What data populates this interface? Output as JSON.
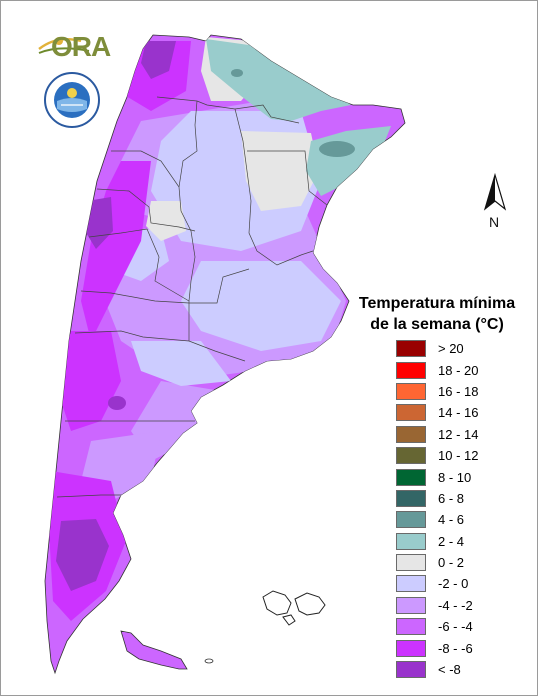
{
  "logo": {
    "text": "ORA",
    "seal_text": "SERVICIO METEOROLÓGICO NACIONAL ARGENTINA"
  },
  "north_label": "N",
  "legend": {
    "title_line1": "Temperatura mínima",
    "title_line2": "de la semana (°C)",
    "items": [
      {
        "label": "> 20",
        "color": "#990000"
      },
      {
        "label": "18 - 20",
        "color": "#ff0000"
      },
      {
        "label": "16 - 18",
        "color": "#ff6633"
      },
      {
        "label": "14 - 16",
        "color": "#cc6633"
      },
      {
        "label": "12 - 14",
        "color": "#996633"
      },
      {
        "label": "10 - 12",
        "color": "#666633"
      },
      {
        "label": "8 - 10",
        "color": "#006633"
      },
      {
        "label": "6 - 8",
        "color": "#336666"
      },
      {
        "label": "4 - 6",
        "color": "#669999"
      },
      {
        "label": "2 - 4",
        "color": "#99cccc"
      },
      {
        "label": "0 - 2",
        "color": "#e6e6e6"
      },
      {
        "label": "-2 - 0",
        "color": "#ccccff"
      },
      {
        "label": "-4 - -2",
        "color": "#cc99ff"
      },
      {
        "label": "-6 - -4",
        "color": "#cc66ff"
      },
      {
        "label": "-8 - -6",
        "color": "#cc33ff"
      },
      {
        "label": "< -8",
        "color": "#9933cc"
      }
    ]
  }
}
